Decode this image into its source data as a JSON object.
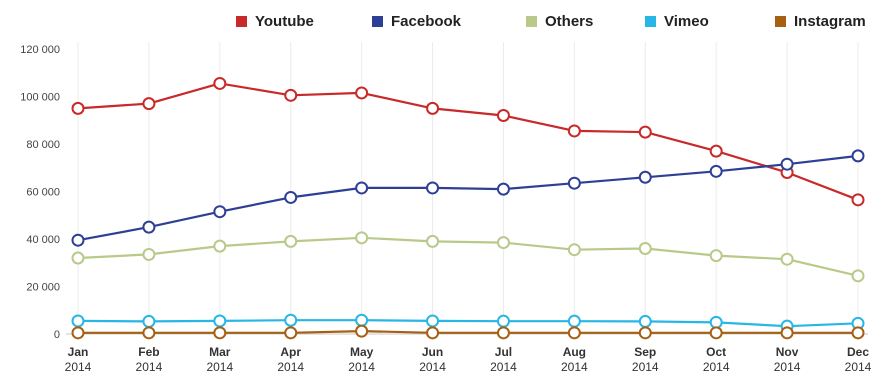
{
  "chart_data": {
    "type": "line",
    "title": "",
    "xlabel": "",
    "ylabel": "",
    "ylim": [
      0,
      120000
    ],
    "yticks": [
      0,
      20000,
      40000,
      60000,
      80000,
      100000,
      120000
    ],
    "ytick_labels": [
      "0",
      "20 000",
      "40 000",
      "60 000",
      "80 000",
      "100 000",
      "120 000"
    ],
    "categories": [
      {
        "month": "Jan",
        "year": "2014"
      },
      {
        "month": "Feb",
        "year": "2014"
      },
      {
        "month": "Mar",
        "year": "2014"
      },
      {
        "month": "Apr",
        "year": "2014"
      },
      {
        "month": "May",
        "year": "2014"
      },
      {
        "month": "Jun",
        "year": "2014"
      },
      {
        "month": "Jul",
        "year": "2014"
      },
      {
        "month": "Aug",
        "year": "2014"
      },
      {
        "month": "Sep",
        "year": "2014"
      },
      {
        "month": "Oct",
        "year": "2014"
      },
      {
        "month": "Nov",
        "year": "2014"
      },
      {
        "month": "Dec",
        "year": "2014"
      }
    ],
    "grid": "vertical",
    "legend_position": "top-right",
    "series": [
      {
        "name": "Youtube",
        "color": "#c82a2a",
        "values": [
          95000,
          97000,
          105500,
          100500,
          101500,
          95000,
          92000,
          85500,
          85000,
          77000,
          68000,
          56500
        ]
      },
      {
        "name": "Facebook",
        "color": "#2e3f96",
        "values": [
          39500,
          45000,
          51500,
          57500,
          61500,
          61500,
          61000,
          63500,
          66000,
          68500,
          71500,
          75000
        ]
      },
      {
        "name": "Others",
        "color": "#b8c98a",
        "values": [
          32000,
          33500,
          37000,
          39000,
          40500,
          39000,
          38500,
          35500,
          36000,
          33000,
          31500,
          24500
        ]
      },
      {
        "name": "Vimeo",
        "color": "#27b6e6",
        "values": [
          5500,
          5300,
          5500,
          5800,
          5800,
          5500,
          5400,
          5400,
          5300,
          4900,
          3300,
          4500
        ]
      },
      {
        "name": "Instagram",
        "color": "#a66012",
        "values": [
          500,
          500,
          500,
          500,
          1200,
          500,
          500,
          500,
          500,
          500,
          500,
          500
        ]
      }
    ]
  }
}
